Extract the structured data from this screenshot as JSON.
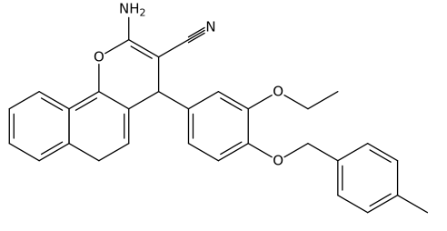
{
  "atoms": [
    {
      "label": "NH",
      "subscript": "2"
    },
    {
      "label": "O"
    },
    {
      "label": "N"
    },
    {
      "label": "O"
    },
    {
      "label": "O"
    }
  ]
}
